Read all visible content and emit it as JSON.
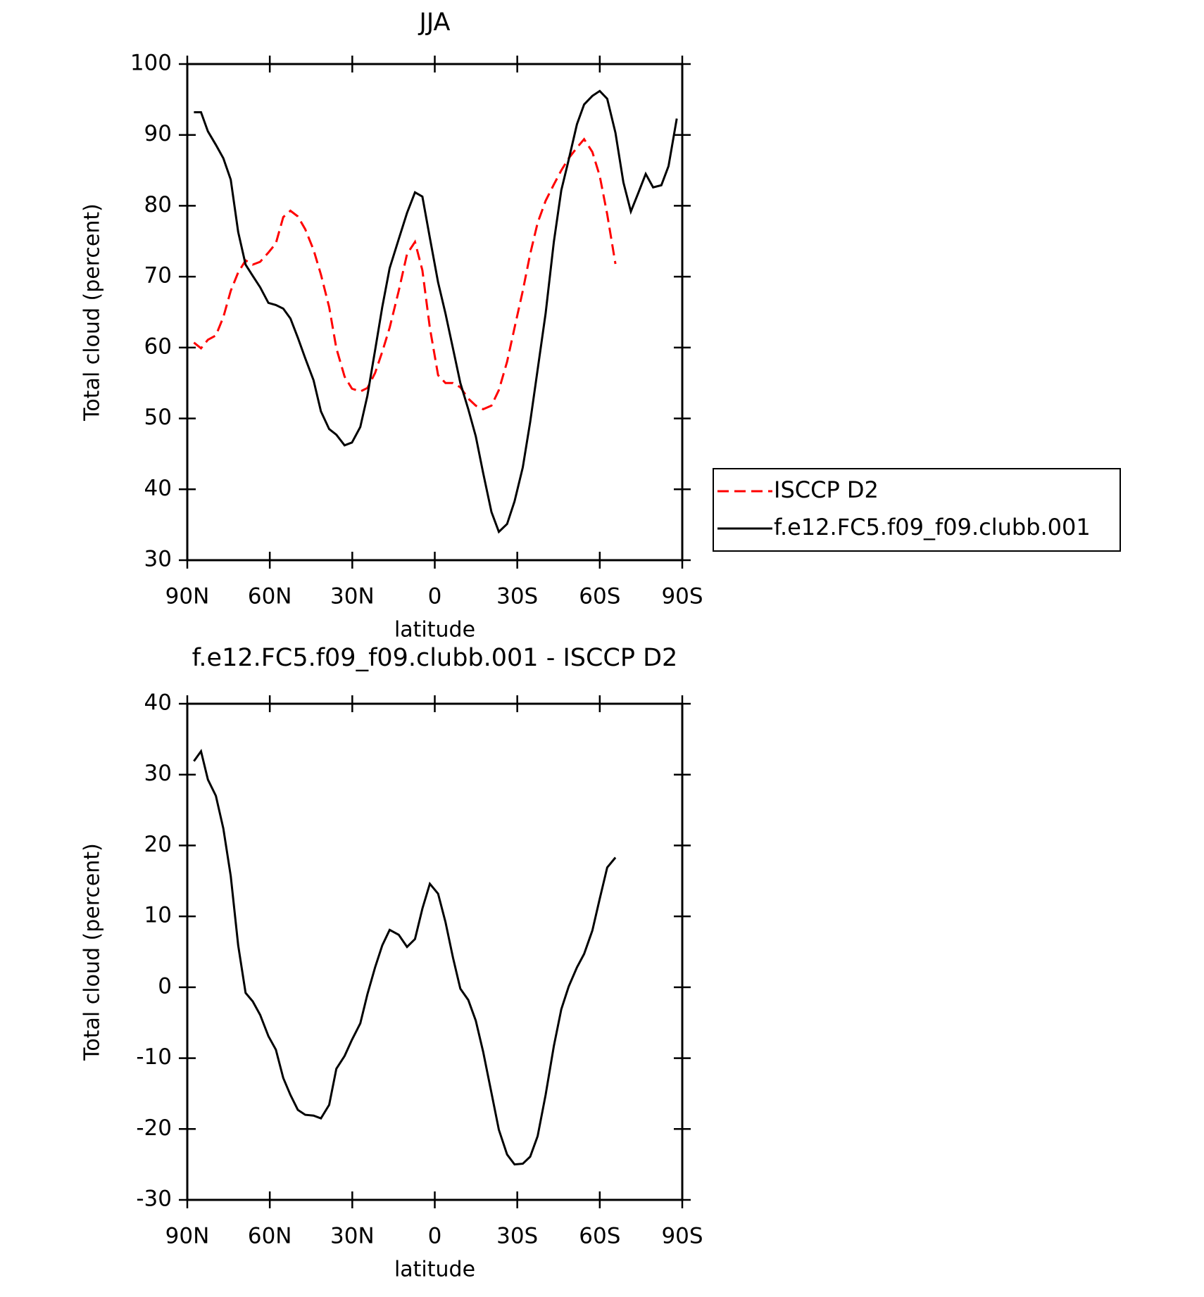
{
  "chart_data": [
    {
      "type": "line",
      "title": "JJA",
      "xlabel": "latitude",
      "ylabel": "Total cloud (percent)",
      "x": [
        87.6,
        85,
        82.5,
        79.6,
        76.9,
        74.2,
        71.5,
        68.8,
        66.2,
        63.5,
        60.5,
        57.8,
        55.1,
        52.5,
        49.8,
        47.1,
        44.1,
        41.4,
        38.4,
        35.8,
        32.8,
        30.1,
        27.1,
        24.5,
        21.7,
        19.1,
        16.4,
        13.1,
        10.1,
        7.2,
        4.5,
        1.8,
        -1.2,
        -3.9,
        -6.6,
        -9.3,
        -12.2,
        -14.9,
        -17.6,
        -20.6,
        -23.3,
        -26.3,
        -29,
        -32,
        -34.7,
        -37.4,
        -40.3,
        -43.3,
        -46,
        -48.7,
        -51.7,
        -54.3,
        -57.3,
        -60,
        -62.7,
        -65.7,
        -68.6,
        -71.3,
        -74,
        -76.7,
        -79.4,
        -82.4,
        -85,
        -88
      ],
      "series": [
        {
          "name": "ISCCP D2",
          "color": "#ff0000",
          "linestyle": "dashed",
          "values": [
            60.7,
            59.9,
            61.1,
            61.7,
            64.3,
            68.0,
            70.6,
            72.3,
            71.7,
            72.1,
            73.4,
            74.7,
            78.4,
            79.3,
            78.5,
            76.7,
            73.8,
            70.3,
            65.7,
            59.9,
            55.9,
            54.2,
            53.8,
            54.3,
            56.4,
            59.4,
            62.8,
            68.0,
            73.2,
            74.9,
            70.9,
            62.8,
            56.1,
            55.0,
            55.0,
            54.4,
            52.8,
            51.8,
            51.3,
            51.8,
            54.0,
            58.0,
            62.8,
            68.0,
            73.2,
            77.6,
            80.7,
            83.0,
            85.0,
            86.7,
            88.2,
            89.4,
            87.6,
            84.2,
            78.8,
            71.8,
            null,
            null,
            null,
            null,
            null,
            null,
            null,
            null
          ]
        },
        {
          "name": "f.e12.FC5.f09_f09.clubb.001",
          "color": "#000000",
          "linestyle": "solid",
          "values": [
            93.2,
            93.2,
            90.5,
            88.6,
            86.7,
            83.7,
            76.3,
            71.7,
            70.1,
            68.5,
            66.3,
            66.0,
            65.5,
            64.1,
            61.4,
            58.5,
            55.4,
            51.0,
            48.5,
            47.7,
            46.2,
            46.6,
            48.8,
            53.2,
            59.6,
            65.7,
            71.2,
            75.3,
            79.0,
            81.9,
            81.3,
            75.5,
            69.2,
            64.8,
            59.9,
            55.0,
            51.3,
            47.5,
            42.3,
            36.8,
            34.0,
            35.1,
            38.3,
            43.1,
            49.5,
            56.9,
            64.8,
            74.9,
            82.2,
            86.5,
            91.5,
            94.3,
            95.5,
            96.2,
            95.1,
            90.3,
            83.3,
            79.2,
            81.8,
            84.5,
            82.6,
            82.9,
            85.6,
            92.3
          ]
        }
      ],
      "xlim": [
        90,
        -90
      ],
      "xticks": [
        {
          "value": 90,
          "label": "90N"
        },
        {
          "value": 60,
          "label": "60N"
        },
        {
          "value": 30,
          "label": "30N"
        },
        0,
        {
          "value": -30,
          "label": "30S"
        },
        {
          "value": -60,
          "label": "60S"
        },
        {
          "value": -90,
          "label": "90S"
        }
      ],
      "ylim": [
        30,
        100
      ],
      "yticks": [
        30,
        40,
        50,
        60,
        70,
        80,
        90,
        100
      ],
      "legend": "right"
    },
    {
      "type": "line",
      "title": "f.e12.FC5.f09_f09.clubb.001 - ISCCP D2",
      "xlabel": "latitude",
      "ylabel": "Total cloud (percent)",
      "x": [
        87.6,
        85,
        82.5,
        79.6,
        76.9,
        74.2,
        71.5,
        68.8,
        66.2,
        63.5,
        60.5,
        57.8,
        55.1,
        52.5,
        49.8,
        47.1,
        44.1,
        41.4,
        38.4,
        35.8,
        32.8,
        30.1,
        27.1,
        24.5,
        21.7,
        19.1,
        16.4,
        13.1,
        10.1,
        7.2,
        4.5,
        1.8,
        -1.2,
        -3.9,
        -6.6,
        -9.3,
        -12.2,
        -14.9,
        -17.6,
        -20.6,
        -23.3,
        -26.3,
        -29,
        -32,
        -34.7,
        -37.4,
        -40.3,
        -43.3,
        -46,
        -48.7,
        -51.7,
        -54.3,
        -57.3,
        -60,
        -62.7,
        -65.7,
        -68.6,
        -71.3,
        -74,
        -76.7,
        -79.4,
        -82.4,
        -85,
        -88
      ],
      "series": [
        {
          "color": "#000000",
          "linestyle": "solid",
          "values": [
            31.9,
            33.3,
            29.3,
            27.0,
            22.4,
            15.7,
            5.9,
            -0.8,
            -2.0,
            -3.9,
            -6.9,
            -8.8,
            -12.8,
            -15.2,
            -17.3,
            -18.0,
            -18.1,
            -18.5,
            -16.6,
            -11.5,
            -9.7,
            -7.4,
            -5.1,
            -1.0,
            2.8,
            5.9,
            8.1,
            7.4,
            5.7,
            6.8,
            11.1,
            14.6,
            13.2,
            9.2,
            4.2,
            -0.2,
            -1.8,
            -4.7,
            -9.1,
            -14.9,
            -20.1,
            -23.6,
            -25.0,
            -24.9,
            -23.9,
            -21.0,
            -15.2,
            -8.3,
            -3.1,
            0.1,
            2.8,
            4.7,
            8.0,
            12.5,
            16.9,
            18.3,
            null,
            null,
            null,
            null,
            null,
            null,
            null,
            null
          ]
        }
      ],
      "xlim": [
        90,
        -90
      ],
      "xticks": [
        {
          "value": 90,
          "label": "90N"
        },
        {
          "value": 60,
          "label": "60N"
        },
        {
          "value": 30,
          "label": "30N"
        },
        0,
        {
          "value": -30,
          "label": "30S"
        },
        {
          "value": -60,
          "label": "60S"
        },
        {
          "value": -90,
          "label": "90S"
        }
      ],
      "ylim": [
        -30,
        40
      ],
      "yticks": [
        -30,
        -20,
        -10,
        0,
        10,
        20,
        30,
        40
      ]
    }
  ]
}
